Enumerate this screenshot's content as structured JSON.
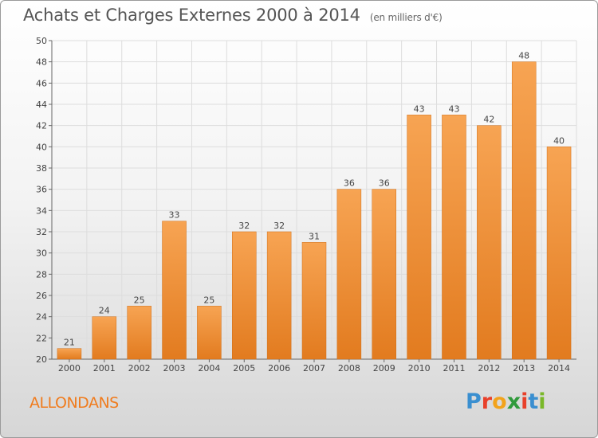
{
  "header": {
    "title": "Achats et Charges Externes 2000 à 2014",
    "unit": "(en milliers d'€)"
  },
  "footer": {
    "town": "ALLONDANS",
    "logo_letters": [
      "P",
      "r",
      "o",
      "x",
      "i",
      "t",
      "i"
    ],
    "logo_colors": [
      "#3a8fd0",
      "#e8402a",
      "#f2a31b",
      "#2f9a3b",
      "#e8402a",
      "#3a8fd0",
      "#7ab829"
    ]
  },
  "colors": {
    "bar_light": "#f7a453",
    "bar_dark": "#e27b1f",
    "grid": "#dddddd",
    "axis_text": "#444444"
  },
  "chart_data": {
    "type": "bar",
    "title": "Achats et Charges Externes 2000 à 2014",
    "subtitle": "(en milliers d'€)",
    "categories": [
      "2000",
      "2001",
      "2002",
      "2003",
      "2004",
      "2005",
      "2006",
      "2007",
      "2008",
      "2009",
      "2010",
      "2011",
      "2012",
      "2013",
      "2014"
    ],
    "values": [
      21,
      24,
      25,
      33,
      25,
      32,
      32,
      31,
      36,
      36,
      43,
      43,
      42,
      48,
      40
    ],
    "ylim": [
      20,
      50
    ],
    "yticks": [
      20,
      22,
      24,
      26,
      28,
      30,
      32,
      34,
      36,
      38,
      40,
      42,
      44,
      46,
      48,
      50
    ],
    "grid": true,
    "legend": "none"
  }
}
